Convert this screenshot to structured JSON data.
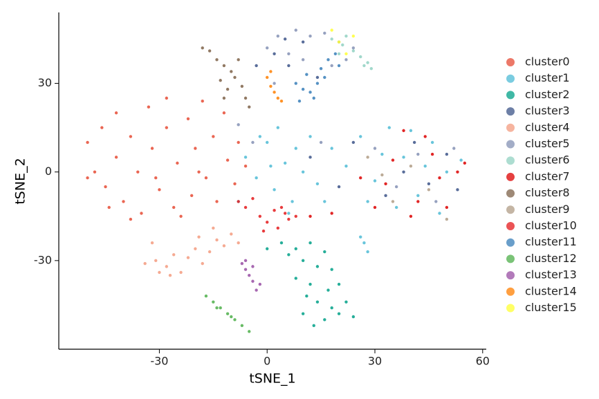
{
  "chart_data": {
    "type": "scatter",
    "x_label": "tSNE_1",
    "y_label": "tSNE_2",
    "xlim": [
      -58,
      61
    ],
    "ylim": [
      -60,
      54
    ],
    "xticks": [
      -30,
      0,
      30,
      60
    ],
    "yticks": [
      -30,
      0,
      30
    ],
    "grid": false,
    "legend": "right",
    "series": [
      {
        "name": "cluster0",
        "color": "#E64B35",
        "x": [
          -50,
          -48,
          -46,
          -45,
          -42,
          -42,
          -40,
          -38,
          -36,
          -35,
          -33,
          -32,
          -30,
          -28,
          -28,
          -26,
          -25,
          -22,
          -21,
          -20,
          -18,
          -17,
          -15,
          -14,
          -12,
          -11,
          -9,
          -8,
          -6,
          -44,
          -50,
          -38,
          -24,
          -31,
          -19
        ],
        "y": [
          10,
          0,
          15,
          -5,
          20,
          5,
          -10,
          12,
          0,
          -14,
          22,
          8,
          -6,
          25,
          15,
          -12,
          3,
          18,
          -8,
          8,
          24,
          -2,
          12,
          -10,
          20,
          4,
          -4,
          10,
          2,
          -12,
          -2,
          -16,
          -15,
          -2,
          0
        ]
      },
      {
        "name": "cluster1",
        "color": "#4DBBD5",
        "x": [
          -6,
          -3,
          0,
          2,
          3,
          5,
          7,
          8,
          10,
          12,
          14,
          18,
          22,
          26,
          30,
          34,
          38,
          42,
          46,
          50,
          54,
          40,
          32,
          28,
          1,
          -2,
          6,
          36,
          44,
          48,
          27,
          28,
          26,
          -8,
          16
        ],
        "y": [
          5,
          -2,
          10,
          -6,
          15,
          3,
          -10,
          8,
          0,
          12,
          -4,
          8,
          2,
          12,
          -3,
          15,
          5,
          -8,
          10,
          0,
          4,
          14,
          6,
          -10,
          2,
          12,
          -14,
          -12,
          2,
          -14,
          -24,
          -27,
          -22,
          -10,
          -10
        ]
      },
      {
        "name": "cluster2",
        "color": "#00A087",
        "x": [
          0,
          4,
          8,
          12,
          16,
          14,
          10,
          18,
          20,
          12,
          8,
          14,
          10,
          16,
          20,
          24,
          18,
          11,
          6,
          22,
          13,
          17
        ],
        "y": [
          -26,
          -24,
          -26,
          -24,
          -27,
          -32,
          -30,
          -33,
          -38,
          -38,
          -36,
          -44,
          -48,
          -50,
          -48,
          -49,
          -46,
          -42,
          -28,
          -44,
          -52,
          -40
        ]
      },
      {
        "name": "cluster3",
        "color": "#3C5488",
        "x": [
          12,
          20,
          24,
          33,
          38,
          45,
          50,
          53,
          41,
          2,
          5,
          10,
          14,
          6,
          -3
        ],
        "y": [
          5,
          -5,
          10,
          -8,
          0,
          -4,
          6,
          -6,
          10,
          40,
          45,
          44,
          32,
          36,
          36
        ]
      },
      {
        "name": "cluster4",
        "color": "#F39B7F",
        "x": [
          -34,
          -31,
          -28,
          -26,
          -24,
          -22,
          -20,
          -18,
          -16,
          -14,
          -12,
          -10,
          -8,
          -27,
          -30,
          -19,
          -15,
          -32
        ],
        "y": [
          -31,
          -30,
          -32,
          -28,
          -34,
          -29,
          -26,
          -31,
          -27,
          -23,
          -25,
          -21,
          -24,
          -35,
          -34,
          -22,
          -19,
          -24
        ]
      },
      {
        "name": "cluster5",
        "color": "#8491B4",
        "x": [
          0,
          3,
          8,
          12,
          16,
          20,
          24,
          6,
          10,
          2,
          18,
          22,
          15,
          30,
          36,
          42,
          47,
          52,
          -8,
          -4
        ],
        "y": [
          42,
          46,
          48,
          46,
          47,
          44,
          42,
          40,
          38,
          30,
          36,
          38,
          10,
          8,
          -5,
          6,
          -10,
          8,
          16,
          10
        ]
      },
      {
        "name": "cluster6",
        "color": "#91D1C2",
        "x": [
          18,
          21,
          24,
          26,
          28,
          22,
          27,
          29,
          20
        ],
        "y": [
          45,
          43,
          41,
          39,
          37,
          46,
          36,
          35,
          40
        ]
      },
      {
        "name": "cluster7",
        "color": "#DC0000",
        "x": [
          30,
          35,
          40,
          44,
          48,
          50,
          53,
          55,
          42,
          46,
          38,
          26,
          33,
          18,
          12
        ],
        "y": [
          -12,
          4,
          -15,
          12,
          -2,
          -12,
          0,
          3,
          -10,
          6,
          14,
          -2,
          -4,
          -14,
          -15
        ]
      },
      {
        "name": "cluster8",
        "color": "#7E6148",
        "x": [
          -18,
          -16,
          -14,
          -12,
          -10,
          -8,
          -9,
          -11,
          -12,
          -7,
          -6,
          -5,
          -13
        ],
        "y": [
          42,
          41,
          38,
          36,
          34,
          38,
          32,
          28,
          25,
          29,
          25,
          22,
          31
        ]
      },
      {
        "name": "cluster9",
        "color": "#B09C85",
        "x": [
          35,
          40,
          45,
          28,
          50,
          32
        ],
        "y": [
          -10,
          2,
          -6,
          5,
          -16,
          -1
        ]
      },
      {
        "name": "cluster10",
        "color": "#E41A1C",
        "x": [
          -8,
          -6,
          -4,
          -2,
          0,
          2,
          4,
          6,
          8,
          3,
          -1,
          5
        ],
        "y": [
          -10,
          -12,
          -9,
          -15,
          -17,
          -13,
          -12,
          -16,
          -15,
          -19,
          -20,
          -14
        ]
      },
      {
        "name": "cluster11",
        "color": "#377EB8",
        "x": [
          8,
          10,
          12,
          14,
          16,
          11,
          13,
          15,
          17,
          19,
          9,
          20
        ],
        "y": [
          30,
          28,
          27,
          30,
          32,
          33,
          25,
          35,
          38,
          40,
          24,
          36
        ]
      },
      {
        "name": "cluster12",
        "color": "#4DAF4A",
        "x": [
          -17,
          -15,
          -13,
          -11,
          -9,
          -7,
          -5,
          -14,
          -10
        ],
        "y": [
          -42,
          -44,
          -46,
          -48,
          -50,
          -52,
          -54,
          -46,
          -49
        ]
      },
      {
        "name": "cluster13",
        "color": "#984EA3",
        "x": [
          -7,
          -6,
          -5,
          -4,
          -3,
          -6,
          -4,
          -2
        ],
        "y": [
          -31,
          -33,
          -35,
          -37,
          -40,
          -30,
          -32,
          -38
        ]
      },
      {
        "name": "cluster14",
        "color": "#FF7F00",
        "x": [
          0,
          1,
          2,
          3,
          4,
          1
        ],
        "y": [
          32,
          29,
          27,
          25,
          24,
          34
        ]
      },
      {
        "name": "cluster15",
        "color": "#FFFF33",
        "x": [
          18,
          20,
          24,
          22
        ],
        "y": [
          48,
          44,
          46,
          40
        ]
      }
    ]
  }
}
